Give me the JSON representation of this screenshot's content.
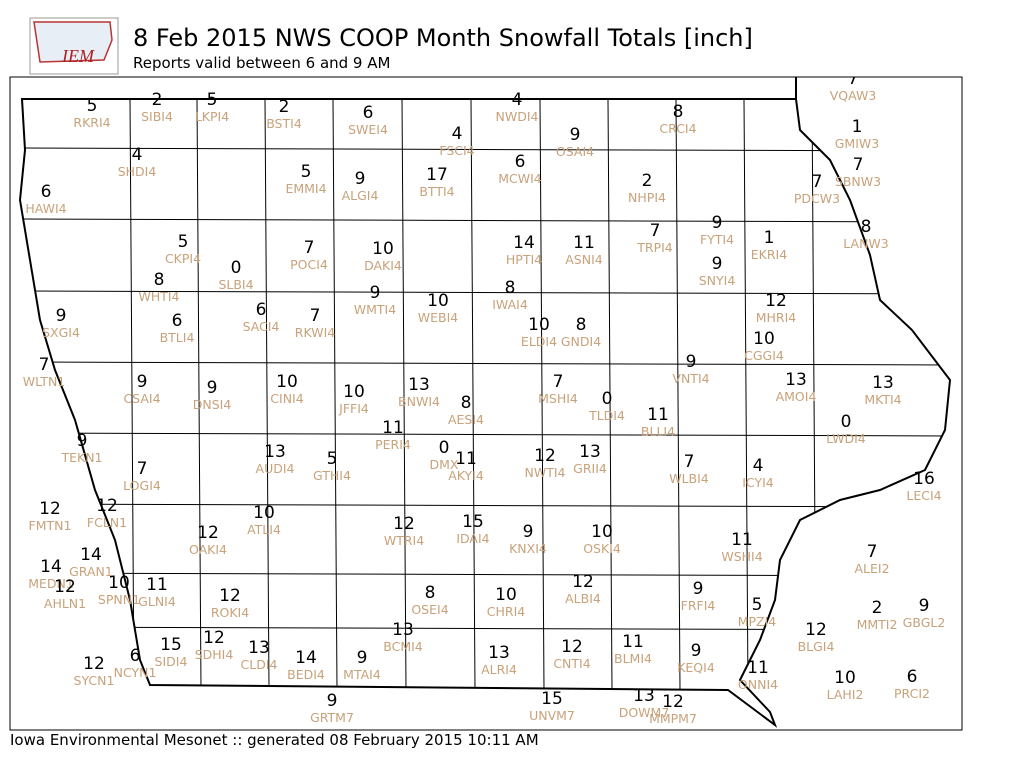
{
  "header": {
    "logo": "IEM",
    "title": "8 Feb 2015 NWS COOP Month Snowfall Totals [inch]",
    "subtitle": "Reports valid between 6 and 9 AM"
  },
  "footer": "Iowa Environmental Mesonet :: generated 08 February 2015 10:11 AM",
  "stations": [
    {
      "id": "RKRI4",
      "value": 5
    },
    {
      "id": "SIBI4",
      "value": 2
    },
    {
      "id": "LKPI4",
      "value": 5
    },
    {
      "id": "BSTI4",
      "value": 2
    },
    {
      "id": "SWEI4",
      "value": 6
    },
    {
      "id": "NWDI4",
      "value": 4
    },
    {
      "id": "FSCI4",
      "value": 4
    },
    {
      "id": "OSAI4",
      "value": 9
    },
    {
      "id": "CRCI4",
      "value": 8
    },
    {
      "id": "HAWI4",
      "value": 6
    },
    {
      "id": "SHDI4",
      "value": 4
    },
    {
      "id": "EMMI4",
      "value": 5
    },
    {
      "id": "ALGI4",
      "value": 9
    },
    {
      "id": "BTTI4",
      "value": 17
    },
    {
      "id": "MCWI4",
      "value": 6
    },
    {
      "id": "NHPI4",
      "value": 2
    },
    {
      "id": "PDCW3",
      "value": 7
    },
    {
      "id": "GMIW3",
      "value": 1
    },
    {
      "id": "SBNW3",
      "value": 7
    },
    {
      "id": "VQAW3",
      "value": 7
    },
    {
      "id": "CKPI4",
      "value": 5
    },
    {
      "id": "POCI4",
      "value": 7
    },
    {
      "id": "DAKI4",
      "value": 10
    },
    {
      "id": "HPTI4",
      "value": 14
    },
    {
      "id": "ASNI4",
      "value": 11
    },
    {
      "id": "TRPI4",
      "value": 7
    },
    {
      "id": "FYTI4",
      "value": 9
    },
    {
      "id": "EKRI4",
      "value": 1
    },
    {
      "id": "LANW3",
      "value": 8
    },
    {
      "id": "SLBI4",
      "value": 0
    },
    {
      "id": "WHTI4",
      "value": 8
    },
    {
      "id": "WMTI4",
      "value": 9
    },
    {
      "id": "WEBI4",
      "value": 10
    },
    {
      "id": "IWAI4",
      "value": 8
    },
    {
      "id": "SNYI4",
      "value": 9
    },
    {
      "id": "MHRI4",
      "value": 12
    },
    {
      "id": "SACI4",
      "value": 6
    },
    {
      "id": "RKWI4",
      "value": 7
    },
    {
      "id": "BTLI4",
      "value": 6
    },
    {
      "id": "SXGI4",
      "value": 9
    },
    {
      "id": "ELDI4",
      "value": 10
    },
    {
      "id": "GNDI4",
      "value": 8
    },
    {
      "id": "CGGI4",
      "value": 10
    },
    {
      "id": "WLTN1",
      "value": 7
    },
    {
      "id": "CSAI4",
      "value": 9
    },
    {
      "id": "DNSI4",
      "value": 9
    },
    {
      "id": "CINI4",
      "value": 10
    },
    {
      "id": "JFFI4",
      "value": 10
    },
    {
      "id": "BNWI4",
      "value": 13
    },
    {
      "id": "AESI4",
      "value": 8
    },
    {
      "id": "MSHI4",
      "value": 7
    },
    {
      "id": "TLDI4",
      "value": 0
    },
    {
      "id": "VNTI4",
      "value": 9
    },
    {
      "id": "BLLI4",
      "value": 11
    },
    {
      "id": "AMOI4",
      "value": 13
    },
    {
      "id": "MKTI4",
      "value": 13
    },
    {
      "id": "LWDI4",
      "value": 0
    },
    {
      "id": "PERI4",
      "value": 11
    },
    {
      "id": "TEKN1",
      "value": 9
    },
    {
      "id": "LOGI4",
      "value": 7
    },
    {
      "id": "AUDI4",
      "value": 13
    },
    {
      "id": "GTHI4",
      "value": 5
    },
    {
      "id": "DMX",
      "value": 0
    },
    {
      "id": "AKYI4",
      "value": 11
    },
    {
      "id": "NWTI4",
      "value": 12
    },
    {
      "id": "GRII4",
      "value": 13
    },
    {
      "id": "WLBI4",
      "value": 7
    },
    {
      "id": "ICYI4",
      "value": 4
    },
    {
      "id": "LECI4",
      "value": 16
    },
    {
      "id": "FMTN1",
      "value": 12
    },
    {
      "id": "FCLN1",
      "value": 12
    },
    {
      "id": "ATLI4",
      "value": 10
    },
    {
      "id": "OAKI4",
      "value": 12
    },
    {
      "id": "WTRI4",
      "value": 12
    },
    {
      "id": "IDAI4",
      "value": 15
    },
    {
      "id": "KNXI4",
      "value": 9
    },
    {
      "id": "OSKI4",
      "value": 10
    },
    {
      "id": "WSHI4",
      "value": 11
    },
    {
      "id": "ALEI2",
      "value": 7
    },
    {
      "id": "GRAN1",
      "value": 14
    },
    {
      "id": "MEDN1",
      "value": 14
    },
    {
      "id": "AHLN1",
      "value": 12
    },
    {
      "id": "SPNN1",
      "value": 10
    },
    {
      "id": "GLNI4",
      "value": 11
    },
    {
      "id": "ROKI4",
      "value": 12
    },
    {
      "id": "OSEI4",
      "value": 8
    },
    {
      "id": "CHRI4",
      "value": 10
    },
    {
      "id": "ALBI4",
      "value": 12
    },
    {
      "id": "FRFI4",
      "value": 9
    },
    {
      "id": "MPZI4",
      "value": 5
    },
    {
      "id": "MMTI2",
      "value": 2
    },
    {
      "id": "GBGL2",
      "value": 9
    },
    {
      "id": "BLGI4",
      "value": 12
    },
    {
      "id": "SIDI4",
      "value": 15
    },
    {
      "id": "SDHI4",
      "value": 12
    },
    {
      "id": "CLDI4",
      "value": 13
    },
    {
      "id": "BEDI4",
      "value": 14
    },
    {
      "id": "MTAI4",
      "value": 9
    },
    {
      "id": "BCMI4",
      "value": 13
    },
    {
      "id": "ALRI4",
      "value": 13
    },
    {
      "id": "CNTI4",
      "value": 12
    },
    {
      "id": "BLMI4",
      "value": 11
    },
    {
      "id": "KEQI4",
      "value": 9
    },
    {
      "id": "ONNI4",
      "value": 11
    },
    {
      "id": "LAHI2",
      "value": 10
    },
    {
      "id": "PRCI2",
      "value": 6
    },
    {
      "id": "SYCN1",
      "value": 12
    },
    {
      "id": "NCYN1",
      "value": 6
    },
    {
      "id": "GRTM7",
      "value": 9
    },
    {
      "id": "UNVM7",
      "value": 15
    },
    {
      "id": "DOWM7",
      "value": 13
    },
    {
      "id": "MMPM7",
      "value": 12
    }
  ]
}
